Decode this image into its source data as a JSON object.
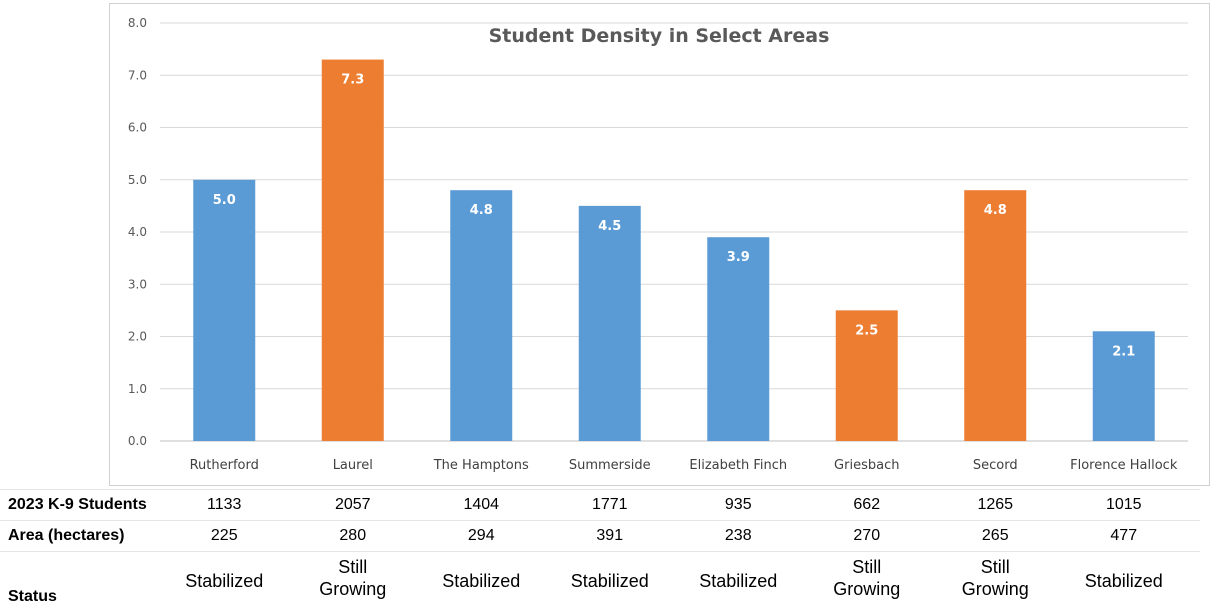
{
  "chart_data": {
    "type": "bar",
    "title": "Student Density in Select Areas",
    "categories": [
      "Rutherford",
      "Laurel",
      "The Hamptons",
      "Summerside",
      "Elizabeth Finch",
      "Griesbach",
      "Secord",
      "Florence Hallock"
    ],
    "values": [
      5.0,
      7.3,
      4.8,
      4.5,
      3.9,
      2.5,
      4.8,
      2.1
    ],
    "data_labels": [
      "5.0",
      "7.3",
      "4.8",
      "4.5",
      "3.9",
      "2.5",
      "4.8",
      "2.1"
    ],
    "bar_colors": [
      "#5b9bd5",
      "#ed7d31",
      "#5b9bd5",
      "#5b9bd5",
      "#5b9bd5",
      "#ed7d31",
      "#ed7d31",
      "#5b9bd5"
    ],
    "ylim": [
      0,
      8
    ],
    "y_ticks": [
      "0.0",
      "1.0",
      "2.0",
      "3.0",
      "4.0",
      "5.0",
      "6.0",
      "7.0",
      "8.0"
    ],
    "grid": true,
    "xlabel": "",
    "ylabel": ""
  },
  "table": {
    "students_label": "2023 K-9 Students",
    "students": [
      "1133",
      "2057",
      "1404",
      "1771",
      "935",
      "662",
      "1265",
      "1015"
    ],
    "area_label": "Area (hectares)",
    "area": [
      "225",
      "280",
      "294",
      "391",
      "238",
      "270",
      "265",
      "477"
    ],
    "status_label": "Status",
    "status": [
      [
        "Stabilized"
      ],
      [
        "Still",
        "Growing"
      ],
      [
        "Stabilized"
      ],
      [
        "Stabilized"
      ],
      [
        "Stabilized"
      ],
      [
        "Still",
        "Growing"
      ],
      [
        "Still",
        "Growing"
      ],
      [
        "Stabilized"
      ]
    ]
  },
  "colors": {
    "blue": "#5b9bd5",
    "orange": "#ed7d31"
  }
}
